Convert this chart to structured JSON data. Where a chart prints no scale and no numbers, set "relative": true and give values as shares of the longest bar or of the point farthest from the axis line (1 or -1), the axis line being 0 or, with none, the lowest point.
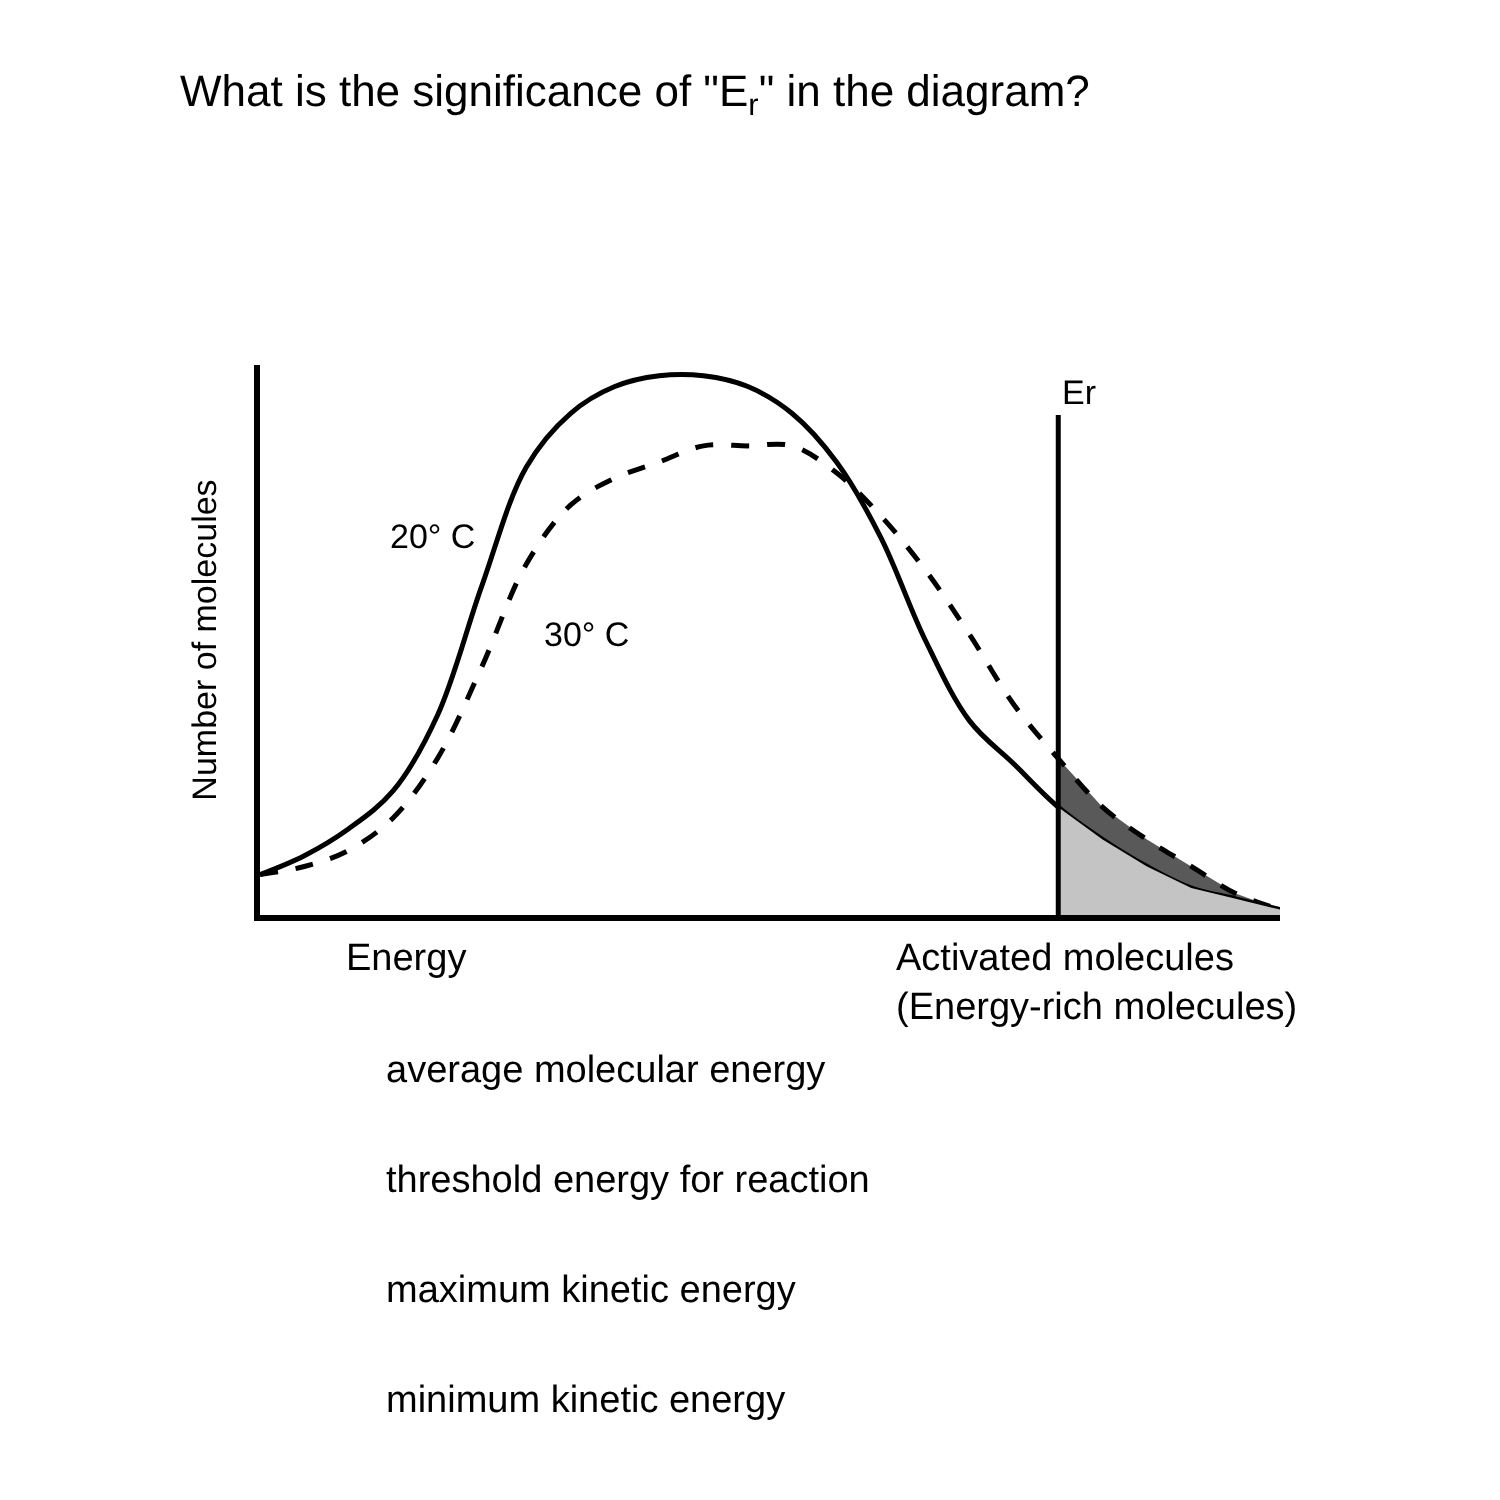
{
  "chart_data": {
    "type": "line",
    "title": "What is the significance of \"E$_{r}$\" in the diagram?",
    "xlabel": "Energy",
    "ylabel": "Number of molecules",
    "relative": true,
    "legend": false,
    "categories": [
      null,
      null,
      null,
      null,
      null,
      null,
      null,
      null,
      null,
      null,
      null,
      null,
      null,
      null,
      null,
      null,
      null,
      null,
      null,
      null,
      null,
      null,
      null,
      null
    ],
    "series": [
      {
        "name": "20° C",
        "color": "#000000",
        "line_style": "solid",
        "values": [
          0.075,
          0.11,
          0.16,
          0.23,
          0.37,
          0.61,
          0.83,
          0.93,
          0.98,
          1.0,
          1.0,
          0.98,
          0.93,
          0.84,
          0.7,
          0.51,
          0.36,
          0.28,
          0.2,
          0.14,
          0.09,
          0.05,
          0.03,
          0.01
        ]
      },
      {
        "name": "30° C",
        "color": "#000000",
        "line_style": "dashed",
        "values": [
          0.075,
          0.09,
          0.12,
          0.18,
          0.29,
          0.46,
          0.65,
          0.76,
          0.81,
          0.84,
          0.87,
          0.87,
          0.87,
          0.82,
          0.74,
          0.64,
          0.52,
          0.39,
          0.29,
          0.2,
          0.14,
          0.09,
          0.04,
          0.01
        ],
        "lower": [
          null,
          null,
          null,
          null,
          null,
          null,
          null,
          null,
          null,
          null,
          null,
          null,
          null,
          null,
          null,
          null,
          null,
          null,
          0.2,
          0.14,
          0.09,
          0.05,
          0.03,
          0.01
        ],
        "upper": [
          null,
          null,
          null,
          null,
          null,
          null,
          null,
          null,
          null,
          null,
          null,
          null,
          null,
          null,
          null,
          null,
          null,
          null,
          0.29,
          0.2,
          0.14,
          0.09,
          0.04,
          0.01
        ]
      },
      {
        "type": "area",
        "color": "#c4c4c4",
        "values": [
          null,
          null,
          null,
          null,
          null,
          null,
          null,
          null,
          null,
          null,
          null,
          null,
          null,
          null,
          null,
          null,
          null,
          null,
          0.2,
          0.14,
          0.09,
          0.05,
          0.03,
          0.01
        ]
      }
    ],
    "annotations": [
      "Er",
      "Activated molecules\n(Energy-rich molecules)",
      "average molecular energy",
      "threshold energy for reaction",
      "maximum kinetic energy",
      "minimum kinetic energy"
    ]
  }
}
